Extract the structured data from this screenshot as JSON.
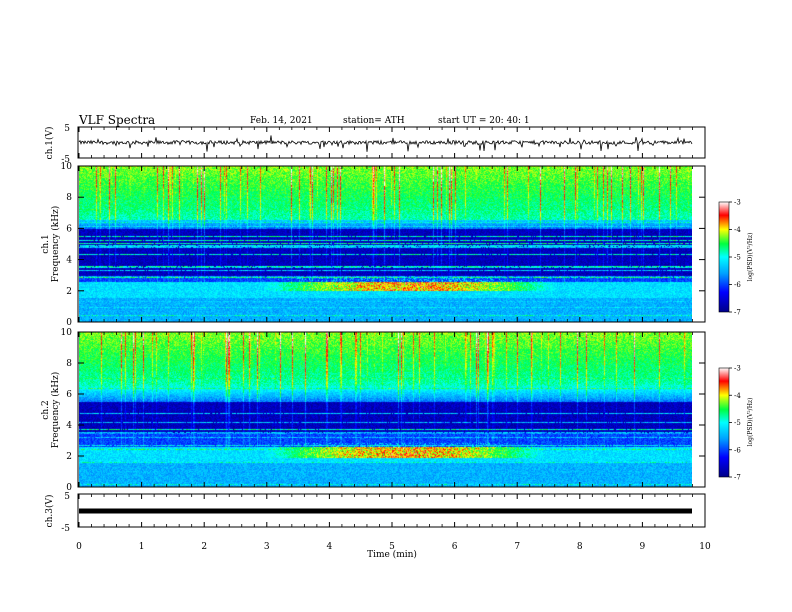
{
  "header": {
    "title": "VLF Spectra",
    "date": "Feb. 14, 2021",
    "station": "station= ATH",
    "start": "start  UT  =   20: 40: 1"
  },
  "chart_data": [
    {
      "type": "line",
      "title": "",
      "ylabel": "ch.1(V)",
      "ylim": [
        -5,
        5
      ],
      "yticks": [
        "5",
        "-5"
      ],
      "xlim": [
        0,
        10
      ],
      "baseline": 0,
      "noise": 0.6,
      "spikes": 1.8
    },
    {
      "type": "heatmap",
      "ylabel": "ch.1\nFrequency (kHz)",
      "ylabel_lines": [
        "ch.1",
        "Frequency (kHz)"
      ],
      "ylim": [
        0,
        10
      ],
      "yticks": [
        "0",
        "2",
        "4",
        "6",
        "8",
        "10"
      ],
      "xlim": [
        0,
        10
      ],
      "colorbar": {
        "label": "log(PSD)(V²/Hz)",
        "range": [
          -7,
          -3
        ],
        "ticks": [
          "-3",
          "-4",
          "-5",
          "-6",
          "-7"
        ]
      },
      "features": {
        "quiet_band_khz": [
          3.0,
          6.0
        ],
        "active_band_khz": [
          2.0,
          2.6
        ],
        "active_time_min": [
          3.0,
          7.8
        ]
      }
    },
    {
      "type": "heatmap",
      "ylabel": "ch.2\nFrequency (kHz)",
      "ylabel_lines": [
        "ch.2",
        "Frequency (kHz)"
      ],
      "ylim": [
        0,
        10
      ],
      "yticks": [
        "0",
        "2",
        "4",
        "6",
        "8",
        "10"
      ],
      "xlim": [
        0,
        10
      ],
      "colorbar": {
        "label": "log(PSD)(V²/Hz)",
        "range": [
          -7,
          -3
        ],
        "ticks": [
          "-3",
          "-4",
          "-5",
          "-6",
          "-7"
        ]
      },
      "features": {
        "quiet_band_khz": [
          3.5,
          5.5
        ],
        "active_band_khz": [
          1.9,
          2.6
        ],
        "active_time_min": [
          3.0,
          7.6
        ]
      }
    },
    {
      "type": "line",
      "ylabel": "ch.3(V)",
      "ylim": [
        -5,
        5
      ],
      "yticks": [
        "5",
        "-5"
      ],
      "xlim": [
        0,
        10
      ],
      "xlabel": "Time  (min)",
      "xticks": [
        "0",
        "1",
        "2",
        "3",
        "4",
        "5",
        "6",
        "7",
        "8",
        "9",
        "10"
      ],
      "baseline": 0,
      "flat": true
    }
  ]
}
